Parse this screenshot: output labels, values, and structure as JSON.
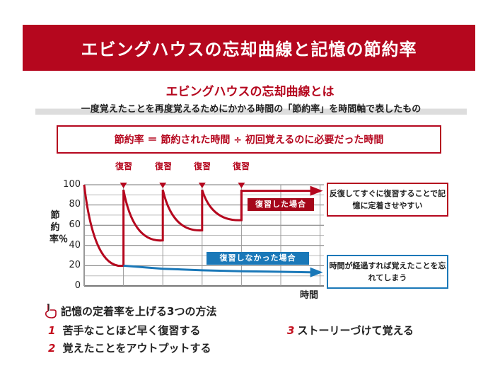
{
  "header": {
    "title": "エビングハウスの忘却曲線と記憶の節約率"
  },
  "subtitle": "エビングハウスの忘却曲線とは",
  "description": "一度覚えたことを再度覚えるためにかかる時間の「節約率」を時間軸で表したもの",
  "formula": "節約率 ＝ 節約された時間 ÷ 初回覚えるのに必要だった時間",
  "chart_data": {
    "type": "line",
    "ylabel": "節約率％",
    "xlabel": "時間",
    "ylim": [
      0,
      100
    ],
    "xlim": [
      0,
      6
    ],
    "yticks": [
      "0",
      "20",
      "40",
      "60",
      "80",
      "100"
    ],
    "grid": true,
    "review_marker_label": "復習",
    "review_times": [
      1,
      2,
      3,
      4
    ],
    "series": [
      {
        "name": "復習した場合",
        "color": "#b5071e",
        "segments": [
          [
            [
              0,
              100
            ],
            [
              1,
              20
            ]
          ],
          [
            [
              1,
              95
            ],
            [
              2,
              45
            ]
          ],
          [
            [
              2,
              95
            ],
            [
              3,
              55
            ]
          ],
          [
            [
              3,
              95
            ],
            [
              4,
              65
            ]
          ]
        ],
        "flat": [
          [
            4,
            94
          ],
          [
            6,
            94
          ]
        ]
      },
      {
        "name": "復習しなかった場合",
        "color": "#1a78b8",
        "points": [
          [
            1,
            20
          ],
          [
            2,
            17
          ],
          [
            3,
            15.5
          ],
          [
            4,
            14.5
          ],
          [
            5,
            14
          ],
          [
            6,
            13.5
          ]
        ]
      }
    ]
  },
  "notes": {
    "reviewed": "反復してすぐに復習することで記憶に定着させやすい",
    "not_reviewed": "時間が経過すれば覚えたことを忘れてしまう"
  },
  "methods": {
    "title": "記憶の定着率を上げる3つの方法",
    "items": [
      {
        "num": "1",
        "text": "苦手なことほど早く復習する"
      },
      {
        "num": "2",
        "text": "覚えたことをアウトプットする"
      },
      {
        "num": "3",
        "text": "ストーリーづけて覚える"
      }
    ]
  }
}
